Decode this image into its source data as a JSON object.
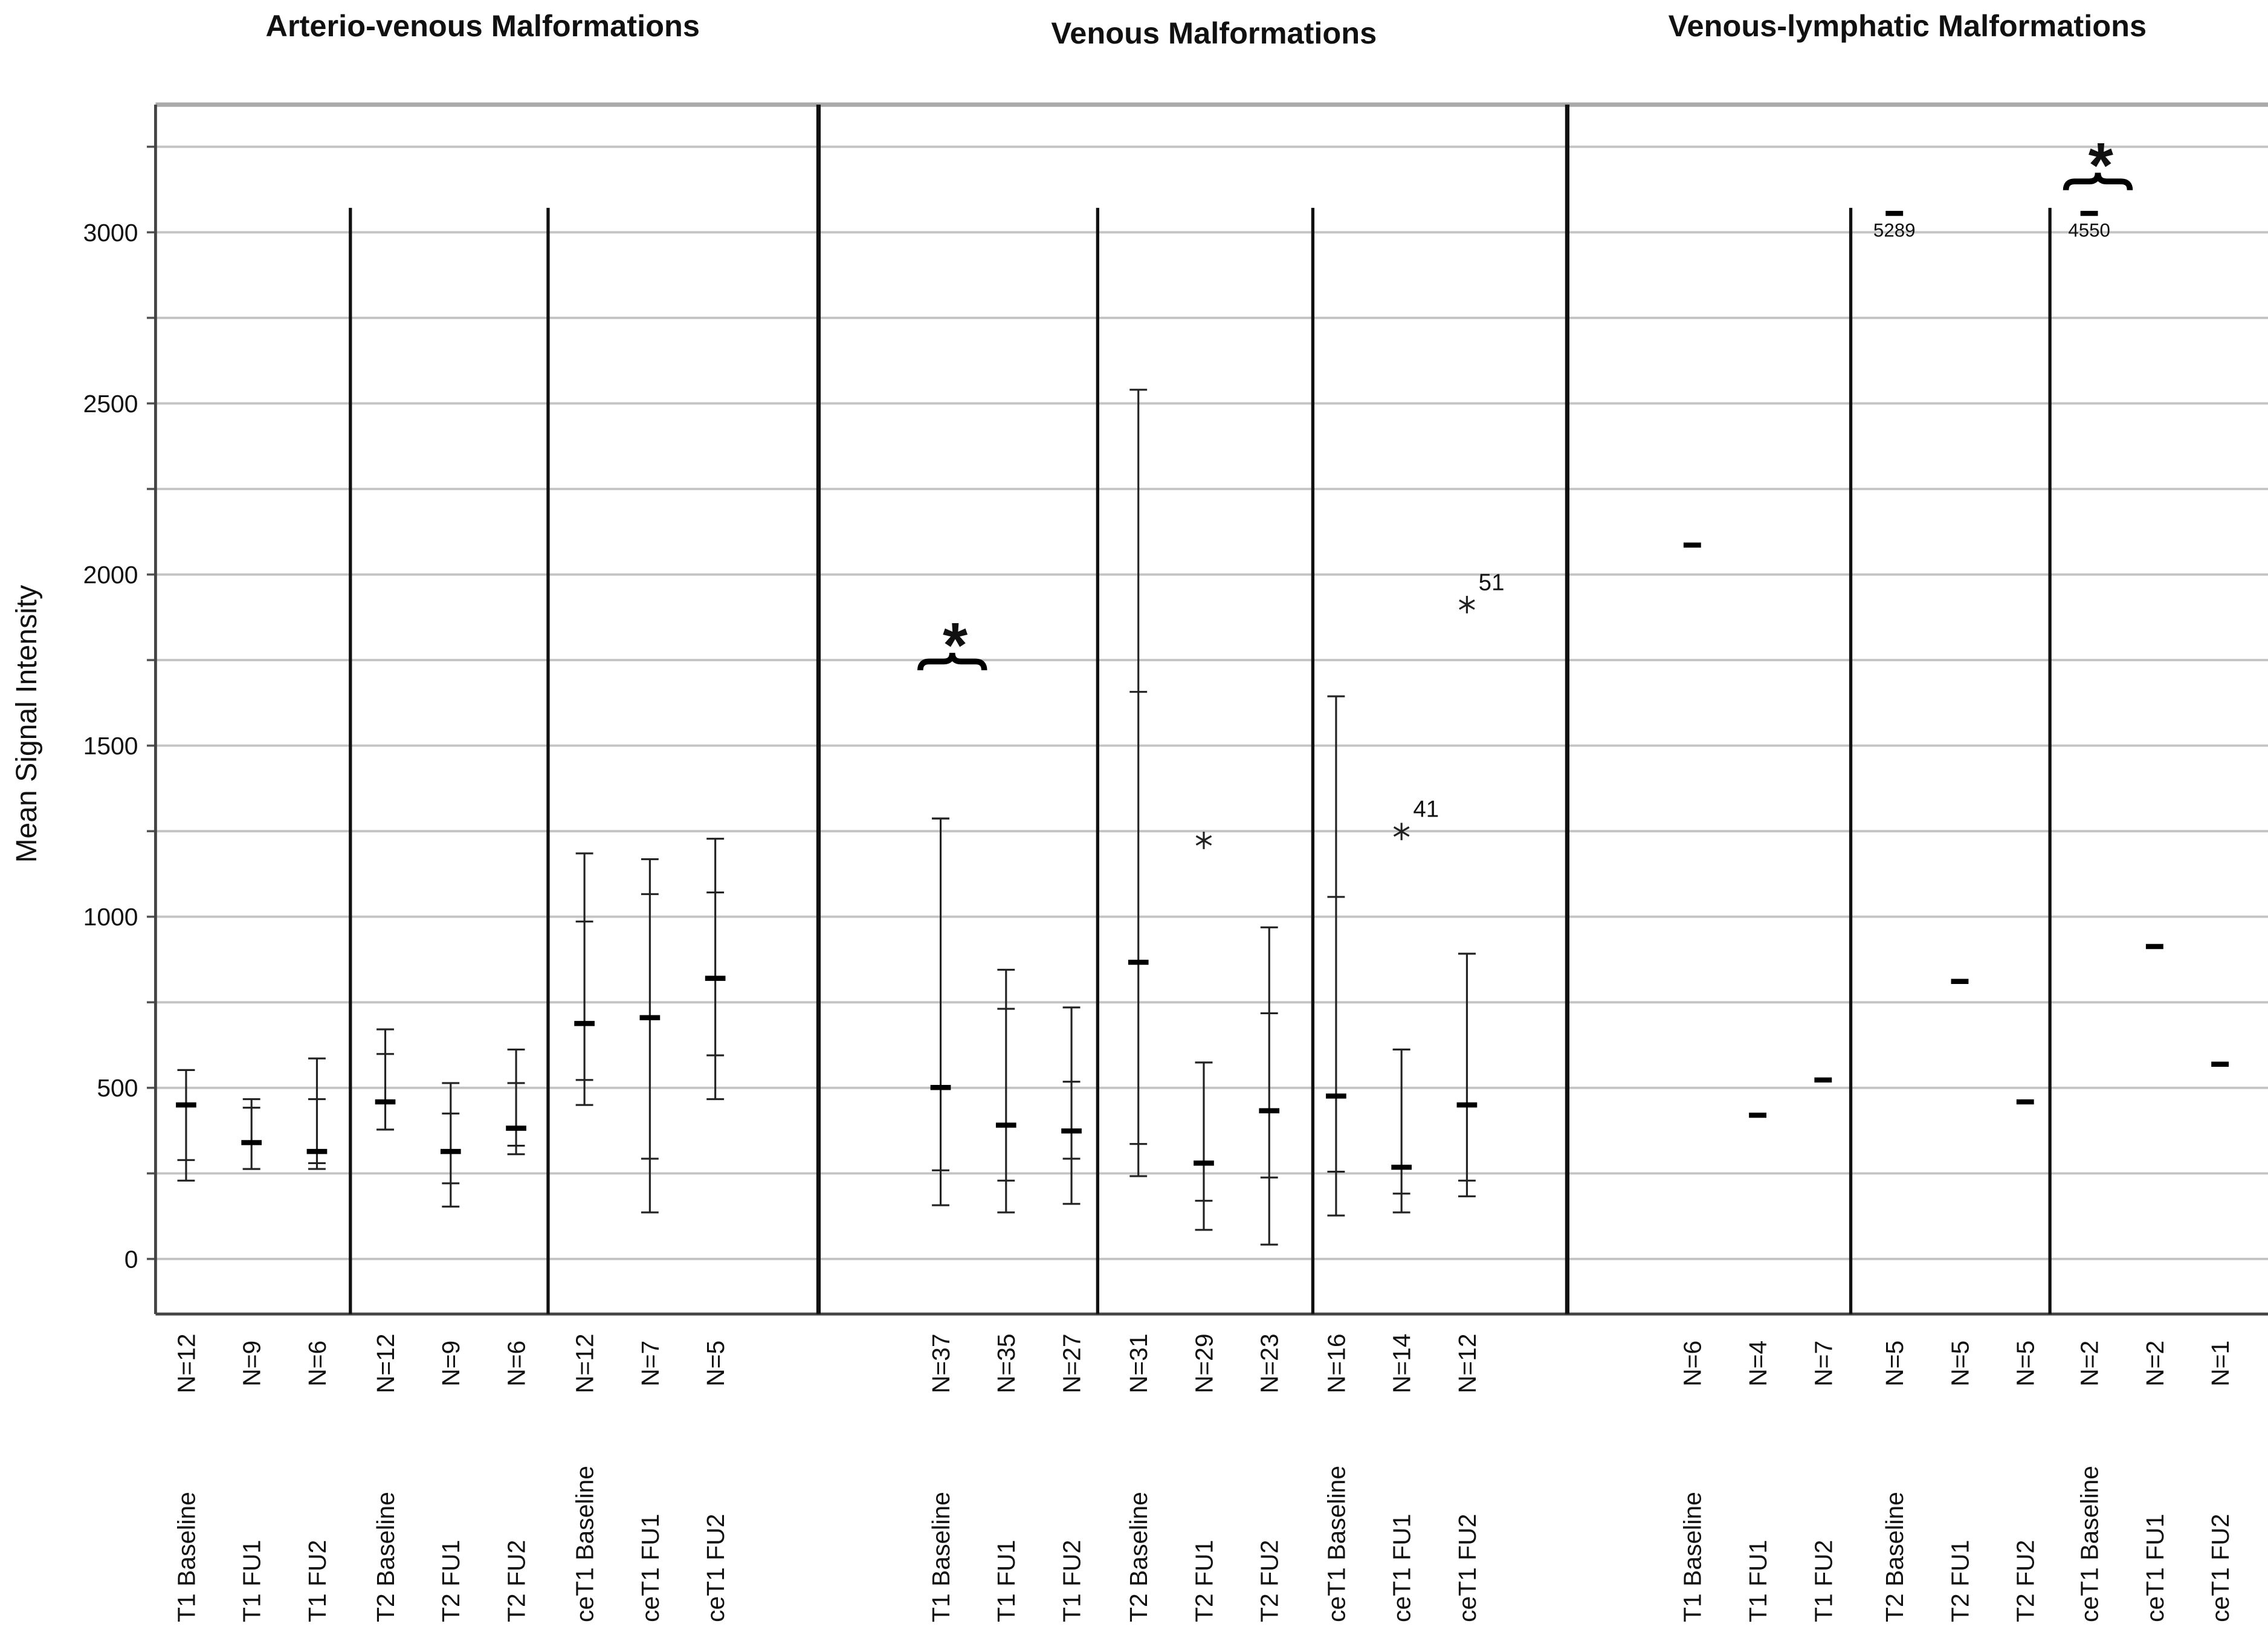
{
  "chart_data": {
    "type": "errorbar",
    "ylabel": "Mean Signal Intensity",
    "ylim": [
      -161,
      3373
    ],
    "yticks": [
      0,
      500,
      1000,
      1500,
      2000,
      2500,
      3000
    ],
    "minor_yticks": [
      250,
      750,
      1250,
      1750,
      2250,
      2750,
      3250
    ],
    "grid": true,
    "color": "#222222",
    "significance_marker": "*",
    "panels": [
      {
        "type": "errorbar",
        "title": "Arterio-venous Malformations",
        "categories": [
          "T1 Baseline",
          "T1 FU1",
          "T1 FU2",
          "T2 Baseline",
          "T2 FU1",
          "T2 FU2",
          "ceT1 Baseline",
          "ceT1 FU1",
          "ceT1 FU2"
        ],
        "n_labels": [
          "N=12",
          "N=9",
          "N=6",
          "N=12",
          "N=9",
          "N=6",
          "N=12",
          "N=7",
          "N=5"
        ],
        "high": [
          552,
          467,
          586,
          671,
          514,
          612,
          1185,
          1168,
          1228
        ],
        "q3": [
          552,
          442,
          467,
          599,
          425,
          514,
          986,
          1066,
          1071
        ],
        "median": [
          450,
          340,
          314,
          459,
          314,
          382,
          688,
          705,
          820
        ],
        "q1": [
          289,
          263,
          280,
          378,
          221,
          331,
          523,
          293,
          595
        ],
        "low": [
          229,
          263,
          263,
          378,
          153,
          306,
          450,
          136,
          467
        ]
      },
      {
        "type": "errorbar",
        "title": "Venous Malformations",
        "categories": [
          "T1 Baseline",
          "T1 FU1",
          "T1 FU2",
          "T2 Baseline",
          "T2 FU1",
          "T2 FU2",
          "ceT1 Baseline",
          "ceT1 FU1",
          "ceT1 FU2"
        ],
        "n_labels": [
          "N=37",
          "N=35",
          "N=27",
          "N=31",
          "N=29",
          "N=23",
          "N=16",
          "N=14",
          "N=12"
        ],
        "high": [
          1287,
          845,
          735,
          2540,
          574,
          969,
          1644,
          612,
          892
        ],
        "q3": [
          1287,
          731,
          518,
          1657,
          574,
          718,
          1058,
          612,
          892
        ],
        "median": [
          501,
          391,
          374,
          867,
          280,
          433,
          476,
          268,
          450
        ],
        "q1": [
          259,
          229,
          293,
          336,
          170,
          238,
          255,
          191,
          229
        ],
        "low": [
          157,
          136,
          161,
          242,
          85,
          42,
          127,
          136,
          183
        ],
        "outliers": [
          {
            "index": 4,
            "value": 1223
          },
          {
            "index": 7,
            "value": 1249,
            "label": "41"
          },
          {
            "index": 8,
            "value": 1912,
            "label": "51"
          }
        ],
        "significant": 0
      },
      {
        "type": "mean",
        "title": "Venous-lymphatic Malformations",
        "categories": [
          "T1 Baseline",
          "T1 FU1",
          "T1 FU2",
          "T2 Baseline",
          "T2 FU1",
          "T2 FU2",
          "ceT1 Baseline",
          "ceT1 FU1",
          "ceT1 FU2"
        ],
        "n_labels": [
          "N=6",
          "N=4",
          "N=7",
          "N=5",
          "N=5",
          "N=5",
          "N=2",
          "N=2",
          "N=1"
        ],
        "values": [
          2086,
          420,
          523,
          5289,
          811,
          459,
          4550,
          913,
          569
        ],
        "value_labels": [
          null,
          null,
          null,
          "5289",
          null,
          null,
          "4550",
          null,
          null
        ],
        "significant": 6
      }
    ]
  }
}
